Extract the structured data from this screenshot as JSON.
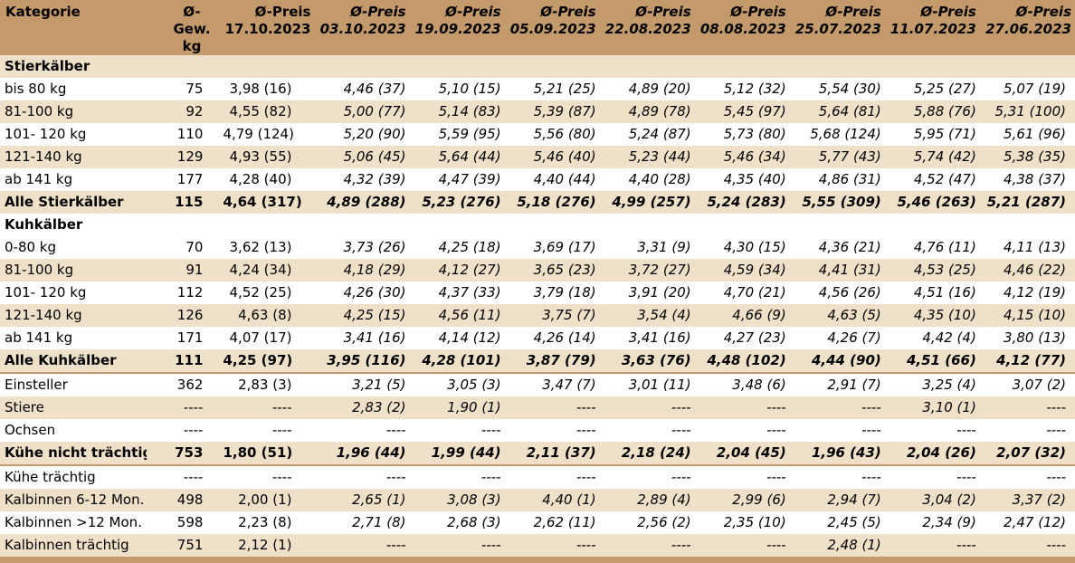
{
  "header": {
    "kategorie": "Kategorie",
    "gew": [
      "Ø-Gew.",
      "kg"
    ],
    "price_label": "Ø-Preis",
    "dates": [
      "17.10.2023",
      "03.10.2023",
      "19.09.2023",
      "05.09.2023",
      "22.08.2023",
      "08.08.2023",
      "25.07.2023",
      "11.07.2023",
      "27.06.2023"
    ]
  },
  "rows": [
    {
      "type": "sec",
      "label": "Stierkälber"
    },
    {
      "type": "row",
      "cat": "bis 80 kg",
      "w": "75",
      "v": [
        "3,98 (16)",
        "4,46 (37)",
        "5,10 (15)",
        "5,21 (25)",
        "4,89 (20)",
        "5,12 (32)",
        "5,54 (30)",
        "5,25 (27)",
        "5,07 (19)"
      ]
    },
    {
      "type": "row",
      "cat": "81-100 kg",
      "w": "92",
      "v": [
        "4,55 (82)",
        "5,00 (77)",
        "5,14 (83)",
        "5,39 (87)",
        "4,89 (78)",
        "5,45 (97)",
        "5,64 (81)",
        "5,88 (76)",
        "5,31 (100)"
      ]
    },
    {
      "type": "row",
      "cat": "101- 120 kg",
      "w": "110",
      "v": [
        "4,79 (124)",
        "5,20 (90)",
        "5,59 (95)",
        "5,56 (80)",
        "5,24 (87)",
        "5,73 (80)",
        "5,68 (124)",
        "5,95 (71)",
        "5,61 (96)"
      ]
    },
    {
      "type": "row",
      "cat": "121-140 kg",
      "w": "129",
      "v": [
        "4,93 (55)",
        "5,06 (45)",
        "5,64 (44)",
        "5,46 (40)",
        "5,23 (44)",
        "5,46 (34)",
        "5,77 (43)",
        "5,74 (42)",
        "5,38 (35)"
      ]
    },
    {
      "type": "row",
      "cat": "ab 141 kg",
      "w": "177",
      "v": [
        "4,28 (40)",
        "4,32 (39)",
        "4,47 (39)",
        "4,40 (44)",
        "4,40 (28)",
        "4,35 (40)",
        "4,86 (31)",
        "4,52 (47)",
        "4,38 (37)"
      ]
    },
    {
      "type": "tot",
      "cat": "Alle Stierkälber",
      "w": "115",
      "v": [
        "4,64 (317)",
        "4,89 (288)",
        "5,23 (276)",
        "5,18 (276)",
        "4,99 (257)",
        "5,24 (283)",
        "5,55 (309)",
        "5,46 (263)",
        "5,21 (287)"
      ]
    },
    {
      "type": "sec",
      "label": "Kuhkälber"
    },
    {
      "type": "row",
      "cat": "0-80 kg",
      "w": "70",
      "v": [
        "3,62 (13)",
        "3,73 (26)",
        "4,25 (18)",
        "3,69 (17)",
        "3,31 (9)",
        "4,30 (15)",
        "4,36 (21)",
        "4,76 (11)",
        "4,11 (13)"
      ]
    },
    {
      "type": "row",
      "cat": "81-100 kg",
      "w": "91",
      "v": [
        "4,24 (34)",
        "4,18 (29)",
        "4,12 (27)",
        "3,65 (23)",
        "3,72 (27)",
        "4,59 (34)",
        "4,41 (31)",
        "4,53 (25)",
        "4,46 (22)"
      ]
    },
    {
      "type": "row",
      "cat": "101- 120 kg",
      "w": "112",
      "v": [
        "4,52 (25)",
        "4,26 (30)",
        "4,37 (33)",
        "3,79 (18)",
        "3,91 (20)",
        "4,70 (21)",
        "4,56 (26)",
        "4,51 (16)",
        "4,12 (19)"
      ]
    },
    {
      "type": "row",
      "cat": "121-140 kg",
      "w": "126",
      "v": [
        "4,63 (8)",
        "4,25 (15)",
        "4,56 (11)",
        "3,75 (7)",
        "3,54 (4)",
        "4,66 (9)",
        "4,63 (5)",
        "4,35 (10)",
        "4,15 (10)"
      ]
    },
    {
      "type": "row",
      "cat": "ab 141 kg",
      "w": "171",
      "v": [
        "4,07 (17)",
        "3,41 (16)",
        "4,14 (12)",
        "4,26 (14)",
        "3,41 (16)",
        "4,27 (23)",
        "4,26 (7)",
        "4,42 (4)",
        "3,80 (13)"
      ]
    },
    {
      "type": "tot",
      "cat": "Alle Kuhkälber",
      "w": "111",
      "v": [
        "4,25 (97)",
        "3,95 (116)",
        "4,28 (101)",
        "3,87 (79)",
        "3,63 (76)",
        "4,48 (102)",
        "4,44 (90)",
        "4,51 (66)",
        "4,12 (77)"
      ]
    },
    {
      "type": "row",
      "cat": "Einsteller",
      "w": "362",
      "v": [
        "2,83 (3)",
        "3,21 (5)",
        "3,05 (3)",
        "3,47 (7)",
        "3,01 (11)",
        "3,48 (6)",
        "2,91 (7)",
        "3,25 (4)",
        "3,07 (2)"
      ]
    },
    {
      "type": "row",
      "cat": "Stiere",
      "w": "----",
      "v": [
        "----",
        "2,83 (2)",
        "1,90 (1)",
        "----",
        "----",
        "----",
        "----",
        "3,10 (1)",
        "----"
      ]
    },
    {
      "type": "row",
      "cat": "Ochsen",
      "w": "----",
      "v": [
        "----",
        "----",
        "----",
        "----",
        "----",
        "----",
        "----",
        "----",
        "----"
      ]
    },
    {
      "type": "tot",
      "cat": "Kühe nicht trächtig",
      "w": "753",
      "v": [
        "1,80 (51)",
        "1,96 (44)",
        "1,99 (44)",
        "2,11 (37)",
        "2,18 (24)",
        "2,04 (45)",
        "1,96 (43)",
        "2,04 (26)",
        "2,07 (32)"
      ]
    },
    {
      "type": "row",
      "cat": "Kühe trächtig",
      "w": "----",
      "v": [
        "----",
        "----",
        "----",
        "----",
        "----",
        "----",
        "----",
        "----",
        "----"
      ]
    },
    {
      "type": "row",
      "cat": "Kalbinnen 6-12 Mon.",
      "w": "498",
      "v": [
        "2,00 (1)",
        "2,65 (1)",
        "3,08 (3)",
        "4,40 (1)",
        "2,89 (4)",
        "2,99 (6)",
        "2,94 (7)",
        "3,04 (2)",
        "3,37 (2)"
      ]
    },
    {
      "type": "row",
      "cat": "Kalbinnen >12 Mon.",
      "w": "598",
      "v": [
        "2,23 (8)",
        "2,71 (8)",
        "2,68 (3)",
        "2,62 (11)",
        "2,56 (2)",
        "2,35 (10)",
        "2,45 (5)",
        "2,34 (9)",
        "2,47 (12)"
      ]
    },
    {
      "type": "row",
      "cat": "Kalbinnen trächtig",
      "w": "751",
      "v": [
        "2,12 (1)",
        "----",
        "----",
        "----",
        "----",
        "----",
        "2,48 (1)",
        "----",
        "----"
      ]
    }
  ],
  "colors": {
    "header_bg": "#c49a6c",
    "band_bg": "#efe1c9",
    "white_bg": "#ffffff"
  }
}
